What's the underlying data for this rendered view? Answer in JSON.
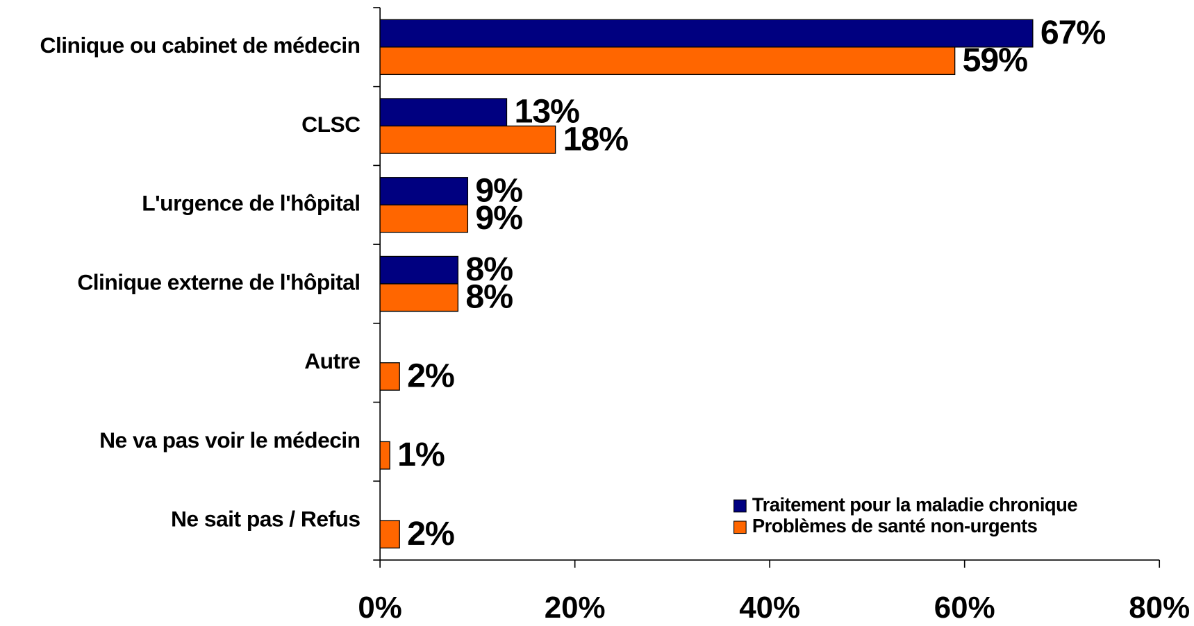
{
  "chart_data": {
    "type": "bar",
    "orientation": "horizontal",
    "categories": [
      "Clinique ou cabinet de médecin",
      "CLSC",
      "L'urgence de l'hôpital",
      "Clinique externe de l'hôpital",
      "Autre",
      "Ne va pas voir le médecin",
      "Ne sait pas / Refus"
    ],
    "series": [
      {
        "name": "Traitement pour la maladie chronique",
        "color": "#000080",
        "values": [
          67,
          13,
          9,
          8,
          null,
          null,
          null
        ],
        "value_labels": [
          "67%",
          "13%",
          "9%",
          "8%",
          null,
          null,
          null
        ]
      },
      {
        "name": "Problèmes de santé non-urgents",
        "color": "#ff6600",
        "values": [
          59,
          18,
          9,
          8,
          2,
          1,
          2
        ],
        "value_labels": [
          "59%",
          "18%",
          "9%",
          "8%",
          "2%",
          "1%",
          "2%"
        ]
      }
    ],
    "xlim": [
      0,
      80
    ],
    "xticks": [
      {
        "value": 0,
        "label": "0%"
      },
      {
        "value": 20,
        "label": "20%"
      },
      {
        "value": 40,
        "label": "40%"
      },
      {
        "value": 60,
        "label": "60%"
      },
      {
        "value": 80,
        "label": "80%"
      }
    ],
    "legend": "lower right"
  }
}
